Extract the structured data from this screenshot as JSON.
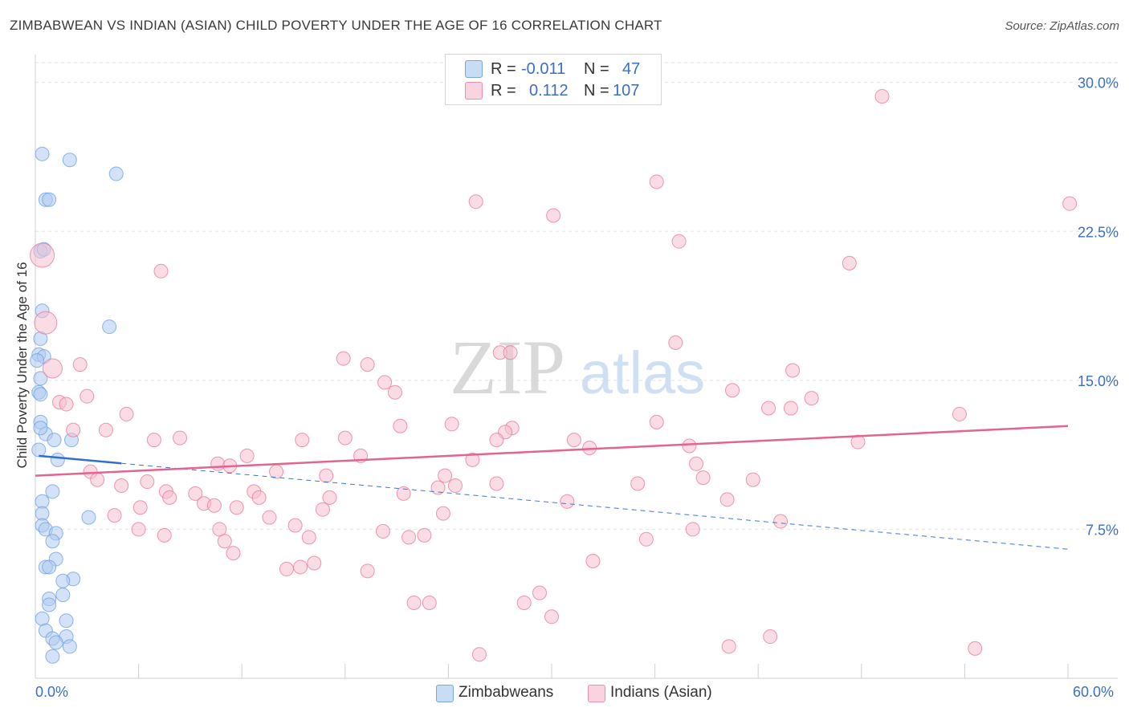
{
  "title": "ZIMBABWEAN VS INDIAN (ASIAN) CHILD POVERTY UNDER THE AGE OF 16 CORRELATION CHART",
  "source": "Source: ZipAtlas.com",
  "watermark": {
    "zip": "ZIP",
    "atlas": "atlas"
  },
  "legend_top": [
    {
      "r_label": "R =",
      "r_value": "-0.011",
      "n_label": "N =",
      "n_value": "47",
      "color": "#aecbf0"
    },
    {
      "r_label": "R =",
      "r_value": "0.112",
      "n_label": "N =",
      "n_value": "107",
      "color": "#f5bfd0"
    }
  ],
  "legend_bottom": [
    {
      "label": "Zimbabweans",
      "color": "#aecbf0"
    },
    {
      "label": "Indians (Asian)",
      "color": "#f5bfd0"
    }
  ],
  "chart_data": {
    "type": "scatter",
    "title": "ZIMBABWEAN VS INDIAN (ASIAN) CHILD POVERTY UNDER THE AGE OF 16 CORRELATION CHART",
    "xlabel": "",
    "ylabel": "Child Poverty Under the Age of 16",
    "xlim": [
      0,
      60
    ],
    "ylim": [
      0,
      31
    ],
    "x_tick_labels": [
      {
        "value": 0,
        "label": "0.0%"
      },
      {
        "value": 60,
        "label": "60.0%"
      }
    ],
    "y_ticks": [
      {
        "value": 7.5,
        "label": "7.5%"
      },
      {
        "value": 15,
        "label": "15.0%"
      },
      {
        "value": 22.5,
        "label": "22.5%"
      },
      {
        "value": 30,
        "label": "30.0%"
      }
    ],
    "grid": true,
    "series": [
      {
        "name": "Zimbabweans",
        "color": "#6a9de0",
        "fill": "#aecbf0",
        "r": -0.011,
        "n": 47,
        "trend": {
          "x0": 0.2,
          "y0": 11.2,
          "x1": 60,
          "y1": 6.5,
          "solid_until_x": 5.0
        },
        "points": [
          [
            0.4,
            26.4
          ],
          [
            2.0,
            26.1
          ],
          [
            4.7,
            25.4
          ],
          [
            0.6,
            24.1
          ],
          [
            0.8,
            24.1
          ],
          [
            0.3,
            21.5
          ],
          [
            0.5,
            21.6
          ],
          [
            0.4,
            18.5
          ],
          [
            4.3,
            17.7
          ],
          [
            0.3,
            17.1
          ],
          [
            0.2,
            16.3
          ],
          [
            0.5,
            16.2
          ],
          [
            0.1,
            16.0
          ],
          [
            0.3,
            15.1
          ],
          [
            0.2,
            14.4
          ],
          [
            0.3,
            14.3
          ],
          [
            0.3,
            12.9
          ],
          [
            0.6,
            12.3
          ],
          [
            1.1,
            12.0
          ],
          [
            2.1,
            12.0
          ],
          [
            0.2,
            11.5
          ],
          [
            1.3,
            11.0
          ],
          [
            1.0,
            9.4
          ],
          [
            0.4,
            8.9
          ],
          [
            0.4,
            8.3
          ],
          [
            3.1,
            8.1
          ],
          [
            0.4,
            7.7
          ],
          [
            0.6,
            7.5
          ],
          [
            1.2,
            7.3
          ],
          [
            1.0,
            6.9
          ],
          [
            1.2,
            6.0
          ],
          [
            0.6,
            5.6
          ],
          [
            0.8,
            5.6
          ],
          [
            2.2,
            5.0
          ],
          [
            1.6,
            4.9
          ],
          [
            1.6,
            4.2
          ],
          [
            0.8,
            4.0
          ],
          [
            0.8,
            3.7
          ],
          [
            0.4,
            3.0
          ],
          [
            1.8,
            2.9
          ],
          [
            0.6,
            2.4
          ],
          [
            1.0,
            2.0
          ],
          [
            1.8,
            2.1
          ],
          [
            1.2,
            1.8
          ],
          [
            2.0,
            1.6
          ],
          [
            1.0,
            1.1
          ],
          [
            0.3,
            12.6
          ]
        ]
      },
      {
        "name": "Indians (Asian)",
        "color": "#e8749a",
        "fill": "#f5bfd0",
        "r": 0.112,
        "n": 107,
        "trend": {
          "x0": 0,
          "y0": 10.2,
          "x1": 60,
          "y1": 12.7
        },
        "points": [
          [
            49.2,
            29.3
          ],
          [
            36.1,
            25.0
          ],
          [
            25.6,
            24.0
          ],
          [
            60.1,
            23.9
          ],
          [
            30.1,
            23.3
          ],
          [
            37.4,
            22.0
          ],
          [
            0.4,
            21.3
          ],
          [
            7.3,
            20.5
          ],
          [
            47.3,
            20.9
          ],
          [
            0.6,
            17.9
          ],
          [
            37.2,
            16.9
          ],
          [
            27.0,
            16.4
          ],
          [
            27.6,
            16.4
          ],
          [
            17.9,
            16.1
          ],
          [
            19.3,
            15.8
          ],
          [
            1.0,
            15.6
          ],
          [
            2.6,
            15.8
          ],
          [
            44.0,
            15.5
          ],
          [
            20.3,
            14.9
          ],
          [
            40.5,
            14.5
          ],
          [
            20.9,
            14.4
          ],
          [
            3.0,
            14.2
          ],
          [
            1.4,
            13.9
          ],
          [
            1.8,
            13.8
          ],
          [
            42.6,
            13.6
          ],
          [
            43.9,
            13.6
          ],
          [
            45.1,
            14.1
          ],
          [
            53.7,
            13.3
          ],
          [
            5.3,
            13.3
          ],
          [
            21.2,
            12.7
          ],
          [
            24.2,
            12.8
          ],
          [
            36.1,
            12.9
          ],
          [
            27.7,
            12.6
          ],
          [
            27.3,
            12.4
          ],
          [
            2.2,
            12.5
          ],
          [
            4.1,
            12.5
          ],
          [
            6.9,
            12.0
          ],
          [
            8.4,
            12.1
          ],
          [
            15.5,
            12.0
          ],
          [
            18.0,
            12.1
          ],
          [
            31.3,
            12.0
          ],
          [
            26.8,
            12.0
          ],
          [
            32.2,
            11.6
          ],
          [
            47.8,
            11.9
          ],
          [
            38.0,
            11.7
          ],
          [
            12.3,
            11.2
          ],
          [
            18.9,
            11.2
          ],
          [
            25.4,
            11.0
          ],
          [
            10.6,
            10.8
          ],
          [
            11.3,
            10.7
          ],
          [
            38.4,
            10.8
          ],
          [
            3.2,
            10.4
          ],
          [
            14.0,
            10.4
          ],
          [
            3.6,
            10.0
          ],
          [
            16.9,
            10.2
          ],
          [
            23.8,
            10.2
          ],
          [
            5.0,
            9.7
          ],
          [
            6.5,
            9.9
          ],
          [
            23.4,
            9.6
          ],
          [
            24.4,
            9.7
          ],
          [
            26.8,
            9.8
          ],
          [
            35.0,
            9.8
          ],
          [
            38.8,
            10.1
          ],
          [
            41.7,
            10.0
          ],
          [
            7.6,
            9.4
          ],
          [
            9.3,
            9.3
          ],
          [
            12.7,
            9.4
          ],
          [
            21.4,
            9.3
          ],
          [
            7.8,
            9.1
          ],
          [
            9.8,
            8.8
          ],
          [
            13.0,
            9.1
          ],
          [
            17.1,
            9.1
          ],
          [
            30.9,
            8.9
          ],
          [
            40.2,
            9.0
          ],
          [
            6.1,
            8.6
          ],
          [
            10.4,
            8.7
          ],
          [
            11.7,
            8.6
          ],
          [
            16.7,
            8.5
          ],
          [
            4.6,
            8.2
          ],
          [
            13.6,
            8.1
          ],
          [
            23.7,
            8.3
          ],
          [
            43.3,
            7.9
          ],
          [
            6.0,
            7.5
          ],
          [
            15.1,
            7.7
          ],
          [
            20.2,
            7.4
          ],
          [
            10.7,
            7.5
          ],
          [
            22.6,
            7.2
          ],
          [
            35.5,
            7.0
          ],
          [
            7.5,
            7.2
          ],
          [
            11.0,
            6.9
          ],
          [
            15.9,
            7.1
          ],
          [
            21.7,
            7.1
          ],
          [
            38.2,
            7.5
          ],
          [
            11.5,
            6.3
          ],
          [
            16.2,
            5.8
          ],
          [
            15.4,
            5.6
          ],
          [
            14.6,
            5.5
          ],
          [
            19.3,
            5.4
          ],
          [
            32.4,
            5.9
          ],
          [
            29.3,
            4.3
          ],
          [
            22.0,
            3.8
          ],
          [
            22.9,
            3.8
          ],
          [
            28.4,
            3.8
          ],
          [
            30.0,
            3.1
          ],
          [
            42.7,
            2.1
          ],
          [
            40.3,
            1.6
          ],
          [
            54.6,
            1.5
          ],
          [
            25.8,
            1.2
          ]
        ]
      }
    ]
  }
}
